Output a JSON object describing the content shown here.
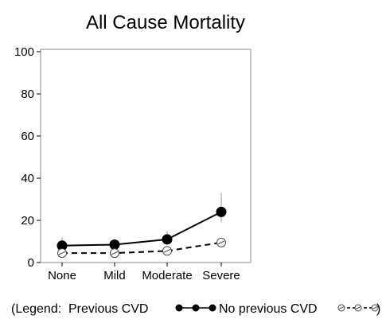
{
  "chart_data": {
    "type": "line",
    "title": "All Cause Mortality",
    "xlabel": "",
    "ylabel": "",
    "categories": [
      "None",
      "Mild",
      "Moderate",
      "Severe"
    ],
    "ylim": [
      0,
      100
    ],
    "yticks": [
      0,
      20,
      40,
      60,
      80,
      100
    ],
    "grid": false,
    "series": [
      {
        "name": "Previous CVD",
        "marker": "filled-circle",
        "line_style": "solid",
        "values": [
          8,
          8.5,
          11,
          24
        ],
        "error_low": [
          5,
          7,
          9,
          19
        ],
        "error_high": [
          12,
          10,
          15,
          33
        ]
      },
      {
        "name": "No previous CVD",
        "marker": "open-circle-slash",
        "line_style": "dashed",
        "values": [
          4.5,
          4.5,
          5.5,
          9.5
        ],
        "error_low": [
          4,
          4,
          5,
          8.5
        ],
        "error_high": [
          5,
          5,
          6,
          10.5
        ]
      }
    ],
    "legend": {
      "prefix": "(Legend: ",
      "suffix": ")",
      "placement": "bottom"
    }
  }
}
